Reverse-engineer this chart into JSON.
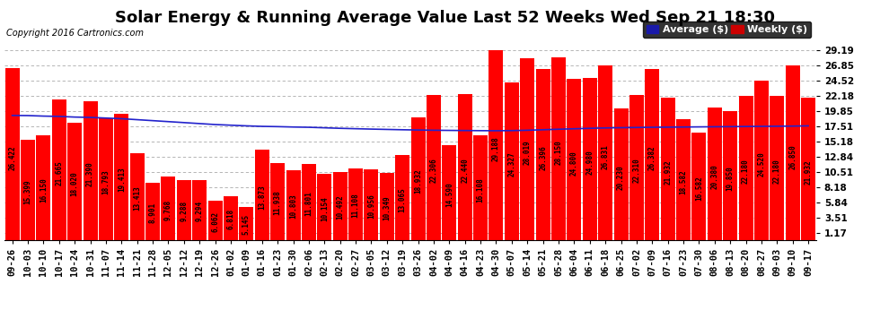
{
  "title": "Solar Energy & Running Average Value Last 52 Weeks Wed Sep 21 18:30",
  "copyright": "Copyright 2016 Cartronics.com",
  "ylabel_right_ticks": [
    1.17,
    3.51,
    5.84,
    8.18,
    10.51,
    12.84,
    15.18,
    17.51,
    19.85,
    22.18,
    24.52,
    26.85,
    29.19
  ],
  "bar_color": "#ff0000",
  "avg_line_color": "#2222cc",
  "legend_avg_color": "#1a1aaa",
  "legend_weekly_color": "#cc0000",
  "background_color": "#ffffff",
  "grid_color": "#aaaaaa",
  "categories": [
    "09-26",
    "10-03",
    "10-10",
    "10-17",
    "10-24",
    "10-31",
    "11-07",
    "11-14",
    "11-21",
    "11-28",
    "12-05",
    "12-12",
    "12-19",
    "12-26",
    "01-02",
    "01-09",
    "01-16",
    "01-23",
    "01-30",
    "02-06",
    "02-13",
    "02-20",
    "02-27",
    "03-05",
    "03-12",
    "03-19",
    "03-26",
    "04-02",
    "04-09",
    "04-16",
    "04-23",
    "04-30",
    "05-07",
    "05-14",
    "05-21",
    "05-28",
    "06-04",
    "06-11",
    "06-18",
    "06-25",
    "07-02",
    "07-09",
    "07-16",
    "07-23",
    "07-30",
    "08-06",
    "08-13",
    "08-20",
    "08-27",
    "09-03",
    "09-10",
    "09-17"
  ],
  "values": [
    26.422,
    15.399,
    16.15,
    21.665,
    18.02,
    21.39,
    18.793,
    19.413,
    13.413,
    8.901,
    9.768,
    9.288,
    9.294,
    6.062,
    6.818,
    5.145,
    13.873,
    11.938,
    10.803,
    11.801,
    10.154,
    10.492,
    11.108,
    10.956,
    10.349,
    13.065,
    18.932,
    22.306,
    14.59,
    22.44,
    16.108,
    29.188,
    24.327,
    28.019,
    26.396,
    28.15,
    24.8,
    24.98,
    26.831,
    20.23,
    22.31,
    26.382,
    21.932,
    18.582,
    16.582,
    20.38,
    19.85,
    22.18,
    24.52,
    22.18,
    26.85,
    21.932
  ],
  "avg_values": [
    19.2,
    19.18,
    19.1,
    19.05,
    18.95,
    18.9,
    18.8,
    18.7,
    18.55,
    18.4,
    18.25,
    18.1,
    17.95,
    17.8,
    17.7,
    17.6,
    17.52,
    17.48,
    17.42,
    17.38,
    17.3,
    17.22,
    17.16,
    17.1,
    17.05,
    17.0,
    16.96,
    16.92,
    16.9,
    16.88,
    16.86,
    16.85,
    16.87,
    16.92,
    17.0,
    17.08,
    17.15,
    17.22,
    17.28,
    17.32,
    17.35,
    17.38,
    17.4,
    17.42,
    17.44,
    17.46,
    17.48,
    17.5,
    17.52,
    17.54,
    17.56,
    17.6
  ],
  "ylim_max": 30.5,
  "title_fontsize": 13,
  "tick_fontsize": 7.5,
  "bar_label_fontsize": 5.5,
  "copyright_fontsize": 7,
  "legend_fontsize": 8
}
